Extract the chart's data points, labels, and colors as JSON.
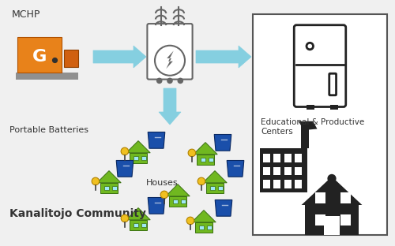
{
  "bg_color": "#f0f0f0",
  "mchp_label": "MCHP",
  "portable_batteries_label": "Portable Batteries",
  "houses_label": "Houses",
  "community_label": "Kanalitojo Community",
  "edu_label": "Educational & Productive Centers",
  "arrow_color": "#85cfe0",
  "generator_orange": "#e8821a",
  "generator_dark_orange": "#d06010",
  "generator_gray": "#909090",
  "house_green": "#70b820",
  "battery_blue": "#1a4faa",
  "battery_yellow": "#f0c020",
  "dark": "#222222"
}
